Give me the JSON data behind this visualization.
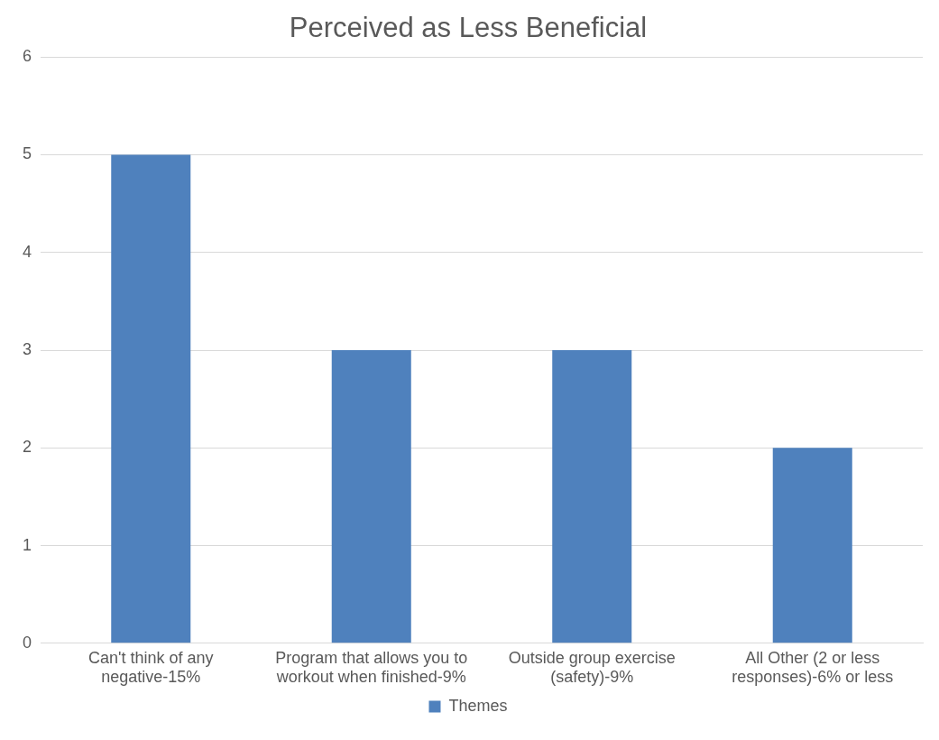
{
  "chart_data": {
    "type": "bar",
    "title": "Perceived as Less Beneficial",
    "categories": [
      "Can't think of any negative-15%",
      "Program that allows you to workout when finished-9%",
      "Outside group exercise (safety)-9%",
      "All Other (2 or less responses)-6% or less"
    ],
    "series": [
      {
        "name": "Themes",
        "color": "#4f81bd",
        "values": [
          5,
          3,
          3,
          2
        ]
      }
    ],
    "ylim": [
      0,
      6
    ],
    "yticks": [
      0,
      1,
      2,
      3,
      4,
      5,
      6
    ],
    "grid": "y",
    "legend": "bottom"
  }
}
